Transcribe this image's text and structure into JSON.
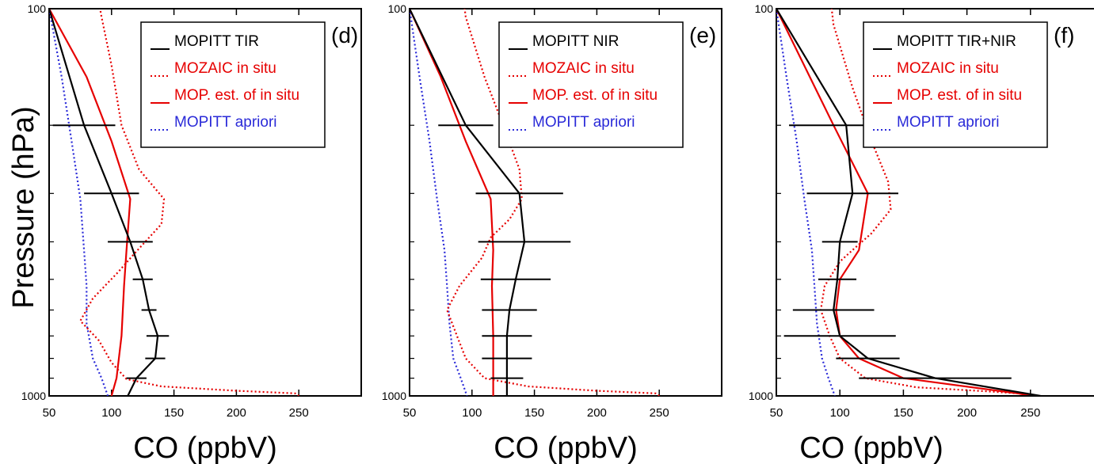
{
  "colors": {
    "measured": "#e60000",
    "apriori": "#2a2ad8",
    "retrieval": "#000000"
  },
  "ylabel": "Pressure (hPa)",
  "chart_data": [
    {
      "type": "line",
      "panel_label": "(d)",
      "xlabel": "CO (ppbV)",
      "ylabel": "Pressure (hPa)",
      "xlim": [
        50,
        300
      ],
      "ylim": [
        1000,
        100
      ],
      "y_scale": "log",
      "x_ticks": [
        "50",
        "100",
        "150",
        "200",
        "250"
      ],
      "y_ticks": [
        "100",
        "1000"
      ],
      "legend": [
        {
          "label": "MOPITT TIR",
          "series": "retrieval"
        },
        {
          "label": "MOZAIC in situ",
          "series": "insitu"
        },
        {
          "label": "MOP. est. of in situ",
          "series": "estimate"
        },
        {
          "label": "MOPITT apriori",
          "series": "apriori"
        }
      ],
      "series": [
        {
          "id": "retrieval",
          "label": "MOPITT TIR",
          "style": "solid",
          "color": "#000000",
          "points": [
            [
              50,
              100
            ],
            [
              78,
              200
            ],
            [
              100,
              300
            ],
            [
              115,
              400
            ],
            [
              125,
              500
            ],
            [
              130,
              600
            ],
            [
              137,
              700
            ],
            [
              135,
              800
            ],
            [
              120,
              900
            ],
            [
              113,
              1000
            ]
          ],
          "errors": [
            25,
            22,
            18,
            8,
            6,
            9,
            8,
            8,
            5
          ]
        },
        {
          "id": "insitu",
          "label": "MOZAIC in situ",
          "style": "dotted",
          "color": "#e60000",
          "points": [
            [
              82,
              70
            ],
            [
              92,
              105
            ],
            [
              100,
              140
            ],
            [
              108,
              200
            ],
            [
              122,
              260
            ],
            [
              142,
              310
            ],
            [
              140,
              360
            ],
            [
              118,
              430
            ],
            [
              105,
              480
            ],
            [
              85,
              560
            ],
            [
              75,
              640
            ],
            [
              90,
              720
            ],
            [
              100,
              820
            ],
            [
              112,
              905
            ],
            [
              140,
              945
            ],
            [
              200,
              970
            ],
            [
              247,
              985
            ],
            [
              250,
              1000
            ]
          ]
        },
        {
          "id": "estimate",
          "label": "MOP. est. of in situ",
          "style": "solid",
          "color": "#e60000",
          "points": [
            [
              50,
              100
            ],
            [
              80,
              150
            ],
            [
              100,
              220
            ],
            [
              115,
              310
            ],
            [
              112,
              420
            ],
            [
              110,
              520
            ],
            [
              108,
              700
            ],
            [
              104,
              900
            ],
            [
              100,
              1000
            ]
          ]
        },
        {
          "id": "apriori",
          "label": "MOPITT apriori",
          "style": "dotted",
          "color": "#2a2ad8",
          "points": [
            [
              50,
              100
            ],
            [
              60,
              150
            ],
            [
              68,
              220
            ],
            [
              75,
              310
            ],
            [
              78,
              420
            ],
            [
              80,
              520
            ],
            [
              80,
              650
            ],
            [
              85,
              800
            ],
            [
              92,
              900
            ],
            [
              97,
              1000
            ]
          ]
        }
      ]
    },
    {
      "type": "line",
      "panel_label": "(e)",
      "xlabel": "CO (ppbV)",
      "ylabel": "",
      "xlim": [
        50,
        300
      ],
      "ylim": [
        1000,
        100
      ],
      "y_scale": "log",
      "x_ticks": [
        "50",
        "100",
        "150",
        "200",
        "250"
      ],
      "y_ticks": [
        "100",
        "1000"
      ],
      "legend": [
        {
          "label": "MOPITT NIR",
          "series": "retrieval"
        },
        {
          "label": "MOZAIC in situ",
          "series": "insitu"
        },
        {
          "label": "MOP. est. of in situ",
          "series": "estimate"
        },
        {
          "label": "MOPITT apriori",
          "series": "apriori"
        }
      ],
      "series": [
        {
          "id": "retrieval",
          "label": "MOPITT NIR",
          "style": "solid",
          "color": "#000000",
          "points": [
            [
              50,
              100
            ],
            [
              95,
              200
            ],
            [
              138,
              300
            ],
            [
              142,
              400
            ],
            [
              135,
              500
            ],
            [
              130,
              600
            ],
            [
              128,
              700
            ],
            [
              128,
              800
            ],
            [
              128,
              900
            ],
            [
              128,
              1000
            ]
          ],
          "errors": [
            22,
            35,
            37,
            28,
            22,
            20,
            20,
            13,
            10
          ]
        },
        {
          "id": "insitu",
          "label": "MOZAIC in situ",
          "style": "dotted",
          "color": "#e60000",
          "points": [
            [
              88,
              70
            ],
            [
              95,
              105
            ],
            [
              110,
              150
            ],
            [
              125,
              200
            ],
            [
              138,
              260
            ],
            [
              140,
              310
            ],
            [
              130,
              350
            ],
            [
              115,
              390
            ],
            [
              108,
              440
            ],
            [
              90,
              520
            ],
            [
              80,
              600
            ],
            [
              88,
              700
            ],
            [
              95,
              800
            ],
            [
              110,
              900
            ],
            [
              145,
              945
            ],
            [
              200,
              970
            ],
            [
              247,
              985
            ],
            [
              250,
              1000
            ]
          ]
        },
        {
          "id": "estimate",
          "label": "MOP. est. of in situ",
          "style": "solid",
          "color": "#e60000",
          "points": [
            [
              50,
              100
            ],
            [
              75,
              150
            ],
            [
              95,
              220
            ],
            [
              115,
              310
            ],
            [
              117,
              420
            ],
            [
              116,
              520
            ],
            [
              117,
              700
            ],
            [
              117,
              900
            ],
            [
              117,
              1000
            ]
          ]
        },
        {
          "id": "apriori",
          "label": "MOPITT apriori",
          "style": "dotted",
          "color": "#2a2ad8",
          "points": [
            [
              50,
              100
            ],
            [
              58,
              150
            ],
            [
              66,
              220
            ],
            [
              72,
              310
            ],
            [
              78,
              420
            ],
            [
              80,
              520
            ],
            [
              82,
              650
            ],
            [
              85,
              800
            ],
            [
              91,
              900
            ],
            [
              96,
              1000
            ]
          ]
        }
      ]
    },
    {
      "type": "line",
      "panel_label": "(f)",
      "xlabel": "CO (ppbV)",
      "ylabel": "",
      "xlim": [
        50,
        300
      ],
      "ylim": [
        1000,
        100
      ],
      "y_scale": "log",
      "x_ticks": [
        "50",
        "100",
        "150",
        "200",
        "250"
      ],
      "y_ticks": [
        "100",
        "1000"
      ],
      "legend": [
        {
          "label": "MOPITT TIR+NIR",
          "series": "retrieval"
        },
        {
          "label": "MOZAIC in situ",
          "series": "insitu"
        },
        {
          "label": "MOP. est. of in situ",
          "series": "estimate"
        },
        {
          "label": "MOPITT apriori",
          "series": "apriori"
        }
      ],
      "series": [
        {
          "id": "retrieval",
          "label": "MOPITT TIR+NIR",
          "style": "solid",
          "color": "#000000",
          "points": [
            [
              50,
              100
            ],
            [
              105,
              200
            ],
            [
              110,
              300
            ],
            [
              100,
              400
            ],
            [
              98,
              500
            ],
            [
              95,
              600
            ],
            [
              100,
              700
            ],
            [
              122,
              800
            ],
            [
              175,
              900
            ],
            [
              258,
              1000
            ]
          ],
          "errors": [
            45,
            36,
            14,
            15,
            32,
            44,
            25,
            60,
            40
          ]
        },
        {
          "id": "insitu",
          "label": "MOZAIC in situ",
          "style": "dotted",
          "color": "#e60000",
          "points": [
            [
              88,
              70
            ],
            [
              95,
              110
            ],
            [
              110,
              160
            ],
            [
              125,
              220
            ],
            [
              138,
              280
            ],
            [
              140,
              330
            ],
            [
              125,
              380
            ],
            [
              110,
              420
            ],
            [
              100,
              450
            ],
            [
              88,
              520
            ],
            [
              85,
              600
            ],
            [
              92,
              700
            ],
            [
              100,
              800
            ],
            [
              120,
              900
            ],
            [
              160,
              950
            ],
            [
              220,
              975
            ],
            [
              250,
              990
            ],
            [
              255,
              1000
            ]
          ]
        },
        {
          "id": "estimate",
          "label": "MOP. est. of in situ",
          "style": "solid",
          "color": "#e60000",
          "points": [
            [
              50,
              100
            ],
            [
              95,
              200
            ],
            [
              122,
              300
            ],
            [
              115,
              420
            ],
            [
              100,
              500
            ],
            [
              97,
              600
            ],
            [
              100,
              700
            ],
            [
              115,
              800
            ],
            [
              150,
              900
            ],
            [
              240,
              985
            ],
            [
              250,
              1000
            ]
          ]
        },
        {
          "id": "apriori",
          "label": "MOPITT apriori",
          "style": "dotted",
          "color": "#2a2ad8",
          "points": [
            [
              50,
              100
            ],
            [
              58,
              150
            ],
            [
              66,
              220
            ],
            [
              72,
              310
            ],
            [
              78,
              420
            ],
            [
              80,
              520
            ],
            [
              82,
              650
            ],
            [
              86,
              800
            ],
            [
              91,
              900
            ],
            [
              96,
              1000
            ]
          ]
        }
      ]
    }
  ]
}
